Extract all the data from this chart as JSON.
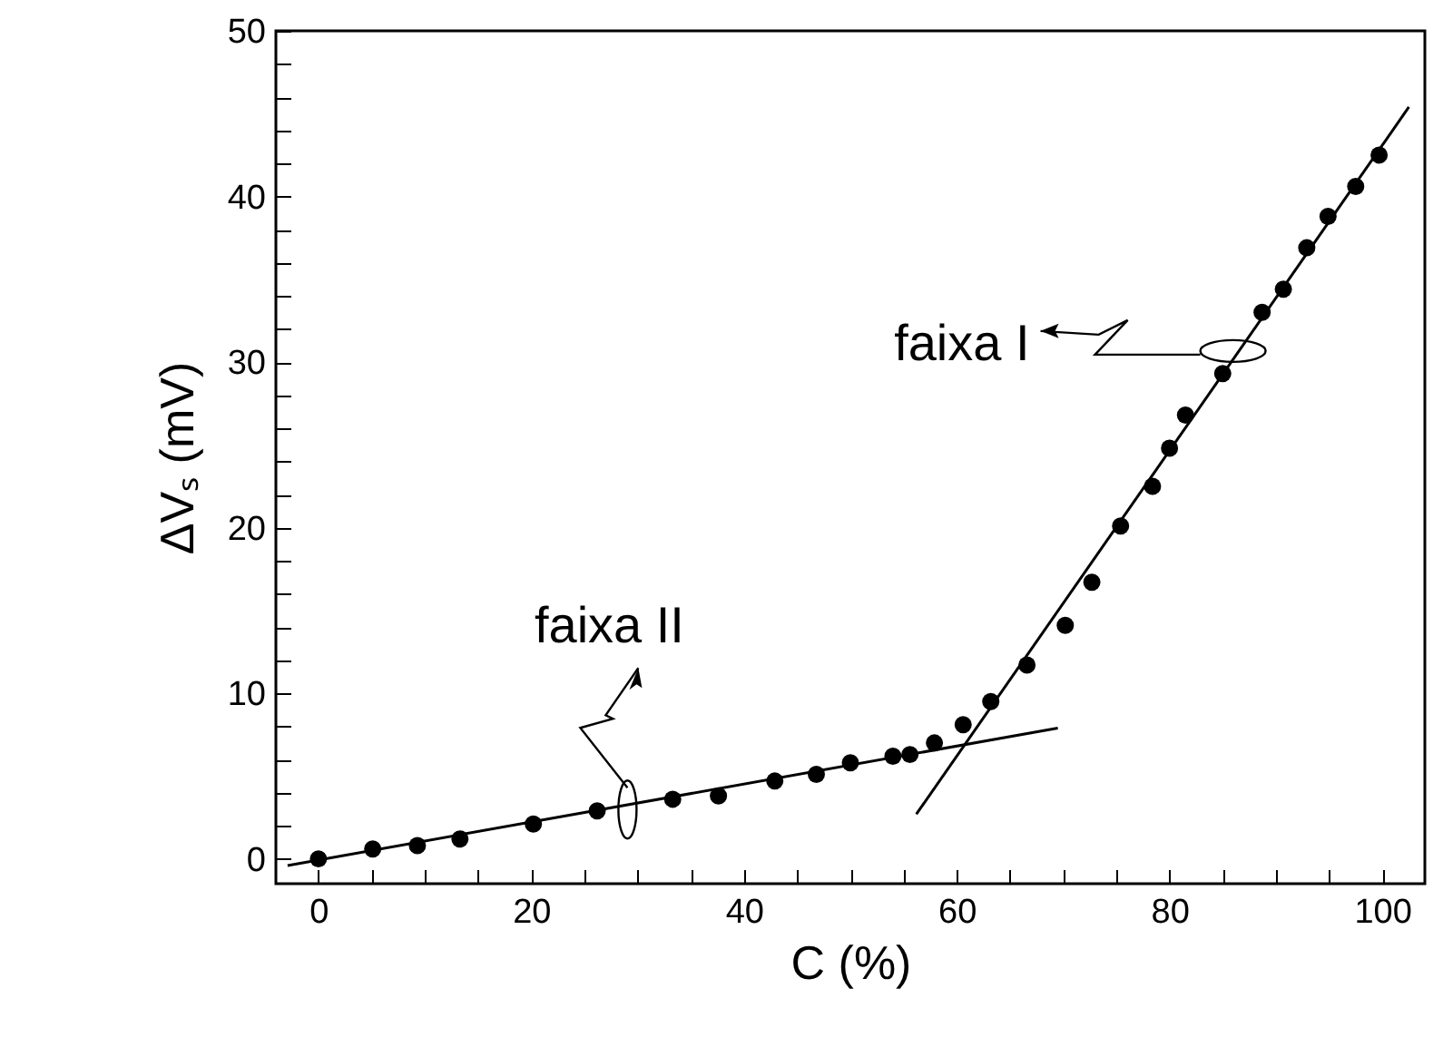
{
  "chart_data": {
    "type": "scatter",
    "xlabel": "C (%)",
    "ylabel": "ΔVₛ (mV)",
    "xlim": [
      -4,
      104
    ],
    "ylim": [
      -1.5,
      50
    ],
    "xticks": [
      0,
      {
        "value": 5,
        "label": null
      },
      {
        "value": 10,
        "label": null
      },
      {
        "value": 15,
        "label": null
      },
      20,
      {
        "value": 25,
        "label": null
      },
      {
        "value": 30,
        "label": null
      },
      {
        "value": 35,
        "label": null
      },
      40,
      {
        "value": 45,
        "label": null
      },
      {
        "value": 50,
        "label": null
      },
      {
        "value": 55,
        "label": null
      },
      60,
      {
        "value": 65,
        "label": null
      },
      {
        "value": 70,
        "label": null
      },
      {
        "value": 75,
        "label": null
      },
      80,
      {
        "value": 85,
        "label": null
      },
      {
        "value": 90,
        "label": null
      },
      {
        "value": 95,
        "label": null
      },
      100
    ],
    "yticks": [
      0,
      {
        "value": 2,
        "label": null
      },
      {
        "value": 4,
        "label": null
      },
      {
        "value": 6,
        "label": null
      },
      {
        "value": 8,
        "label": null
      },
      10,
      {
        "value": 12,
        "label": null
      },
      {
        "value": 14,
        "label": null
      },
      {
        "value": 16,
        "label": null
      },
      {
        "value": 18,
        "label": null
      },
      20,
      {
        "value": 22,
        "label": null
      },
      {
        "value": 24,
        "label": null
      },
      {
        "value": 26,
        "label": null
      },
      {
        "value": 28,
        "label": null
      },
      30,
      {
        "value": 32,
        "label": null
      },
      {
        "value": 34,
        "label": null
      },
      {
        "value": 36,
        "label": null
      },
      {
        "value": 38,
        "label": null
      },
      40,
      {
        "value": 42,
        "label": null
      },
      {
        "value": 44,
        "label": null
      },
      {
        "value": 46,
        "label": null
      },
      {
        "value": 48,
        "label": null
      },
      50
    ],
    "grid": false,
    "marker": "circle",
    "series": [
      {
        "type": "scatter",
        "color": "#000000",
        "x": [
          0,
          5.1,
          9.3,
          13.3,
          20.2,
          26.2,
          33.3,
          37.6,
          42.9,
          46.8,
          50,
          54,
          55.6,
          57.9,
          60.6,
          63.2,
          66.6,
          70.2,
          72.7,
          75.4,
          78.4,
          80,
          81.5,
          85,
          88.7,
          90.7,
          92.9,
          94.9,
          97.5,
          99.7
        ],
        "values": [
          0,
          0.6,
          0.8,
          1.2,
          2.1,
          2.9,
          3.6,
          3.8,
          4.7,
          5.1,
          5.8,
          6.2,
          6.3,
          7,
          8.1,
          9.5,
          11.7,
          14.1,
          16.7,
          20.1,
          22.5,
          24.8,
          26.8,
          29.3,
          33,
          34.4,
          36.9,
          38.8,
          40.6,
          42.5
        ]
      },
      {
        "type": "line",
        "color": "#000000",
        "marker": "none",
        "line_style": "solid",
        "x": [
          56.2,
          102.5
        ],
        "values": [
          2.7,
          45.4
        ]
      },
      {
        "type": "line",
        "color": "#000000",
        "marker": "none",
        "line_style": "solid",
        "x": [
          -2.9,
          69.5
        ],
        "values": [
          -0.4,
          7.9
        ]
      }
    ],
    "annotations": [
      "faixa I",
      "faixa II"
    ]
  }
}
